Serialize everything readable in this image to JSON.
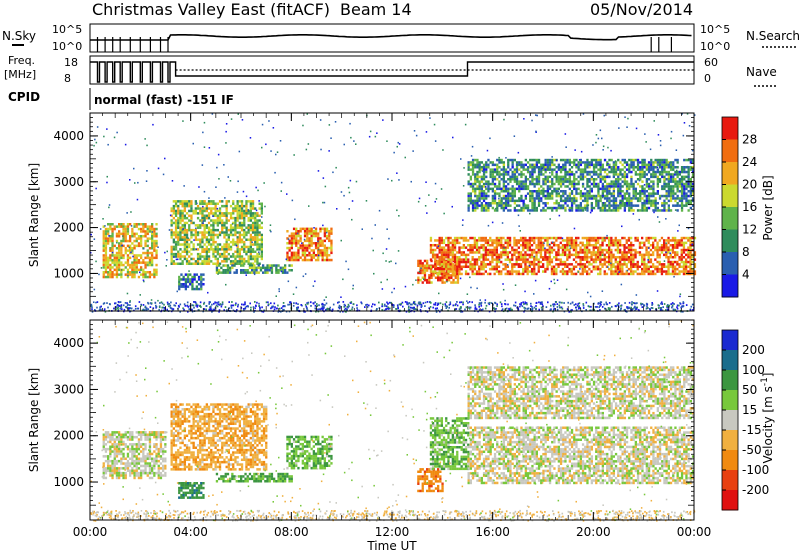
{
  "header": {
    "station": "Christmas Valley East (fitACF)",
    "beam": "Beam 14",
    "date": "05/Nov/2014"
  },
  "status_panel": {
    "nsky_label": "N.Sky",
    "nsearch_label": "N.Search",
    "noise_ticks_left": [
      "10^5",
      "10^0"
    ],
    "noise_ticks_right": [
      "10^5",
      "10^0"
    ],
    "freq_label_1": "Freq.",
    "freq_label_2": "[MHz]",
    "freq_ticks": [
      "18",
      "8"
    ],
    "nave_label": "Nave",
    "nave_ticks": [
      "60",
      "0"
    ],
    "cpid_label": "CPID",
    "cpid_text": "normal (fast) -151 IF"
  },
  "x_axis": {
    "label": "Time UT",
    "ticks": [
      "00:00",
      "04:00",
      "08:00",
      "12:00",
      "16:00",
      "20:00",
      "00:00"
    ]
  },
  "chart_data": [
    {
      "type": "heatmap",
      "parameter": "Power",
      "ylabel": "Slant Range [km]",
      "xlabel": "Time UT",
      "x_range_hours": [
        0,
        24
      ],
      "y_range_km": [
        180,
        4500
      ],
      "y_ticks": [
        1000,
        2000,
        3000,
        4000
      ],
      "colorbar": {
        "label": "Power [dB]",
        "ticks": [
          "4",
          "8",
          "12",
          "16",
          "20",
          "24",
          "28"
        ],
        "colors": [
          "#1a1ae6",
          "#2a5fb0",
          "#2f8c5c",
          "#5fb34a",
          "#cbd92f",
          "#f0a820",
          "#f06d10",
          "#e81a10"
        ]
      },
      "echo_regions": [
        {
          "t": [
            0.5,
            2.6
          ],
          "range_km": [
            900,
            2100
          ],
          "value_db": 22
        },
        {
          "t": [
            3.2,
            6.8
          ],
          "range_km": [
            1200,
            2600
          ],
          "value_db": 18
        },
        {
          "t": [
            3.5,
            4.5
          ],
          "range_km": [
            650,
            1000
          ],
          "value_db": 10
        },
        {
          "t": [
            5.0,
            8.0
          ],
          "range_km": [
            1000,
            1200
          ],
          "value_db": 14
        },
        {
          "t": [
            7.8,
            9.6
          ],
          "range_km": [
            1300,
            2000
          ],
          "value_db": 26
        },
        {
          "t": [
            13.0,
            14.6
          ],
          "range_km": [
            800,
            1300
          ],
          "value_db": 28
        },
        {
          "t": [
            13.5,
            24.0
          ],
          "range_km": [
            1000,
            1800
          ],
          "value_db": 27
        },
        {
          "t": [
            15.0,
            24.0
          ],
          "range_km": [
            2400,
            3500
          ],
          "value_db": 12
        }
      ]
    },
    {
      "type": "heatmap",
      "parameter": "Velocity",
      "ylabel": "Slant Range [km]",
      "xlabel": "Time UT",
      "x_range_hours": [
        0,
        24
      ],
      "y_range_km": [
        180,
        4500
      ],
      "y_ticks": [
        1000,
        2000,
        3000,
        4000
      ],
      "colorbar": {
        "label": "Velocity [m s^-1]",
        "ticks": [
          "200",
          "100",
          "50",
          "15",
          "-15",
          "-50",
          "-100",
          "-200"
        ],
        "colors": [
          "#1a2ad0",
          "#1a6d8c",
          "#3c9640",
          "#78c83c",
          "#c8c8c0",
          "#f0b040",
          "#f08a10",
          "#e84010",
          "#e01010"
        ]
      },
      "echo_regions": [
        {
          "t": [
            0.5,
            3.0
          ],
          "range_km": [
            1100,
            2100
          ],
          "value_ms": 0
        },
        {
          "t": [
            3.2,
            7.0
          ],
          "range_km": [
            1300,
            2700
          ],
          "value_ms": -40
        },
        {
          "t": [
            3.5,
            4.5
          ],
          "range_km": [
            650,
            1000
          ],
          "value_ms": 80
        },
        {
          "t": [
            5.0,
            8.0
          ],
          "range_km": [
            1000,
            1200
          ],
          "value_ms": 60
        },
        {
          "t": [
            7.8,
            9.6
          ],
          "range_km": [
            1300,
            2000
          ],
          "value_ms": 40
        },
        {
          "t": [
            13.0,
            14.0
          ],
          "range_km": [
            800,
            1300
          ],
          "value_ms": -80
        },
        {
          "t": [
            13.5,
            15.0
          ],
          "range_km": [
            1300,
            2400
          ],
          "value_ms": 40
        },
        {
          "t": [
            15.0,
            24.0
          ],
          "range_km": [
            1000,
            2200
          ],
          "value_ms": 0
        },
        {
          "t": [
            15.0,
            24.0
          ],
          "range_km": [
            2400,
            3500
          ],
          "value_ms": 0
        }
      ]
    }
  ]
}
